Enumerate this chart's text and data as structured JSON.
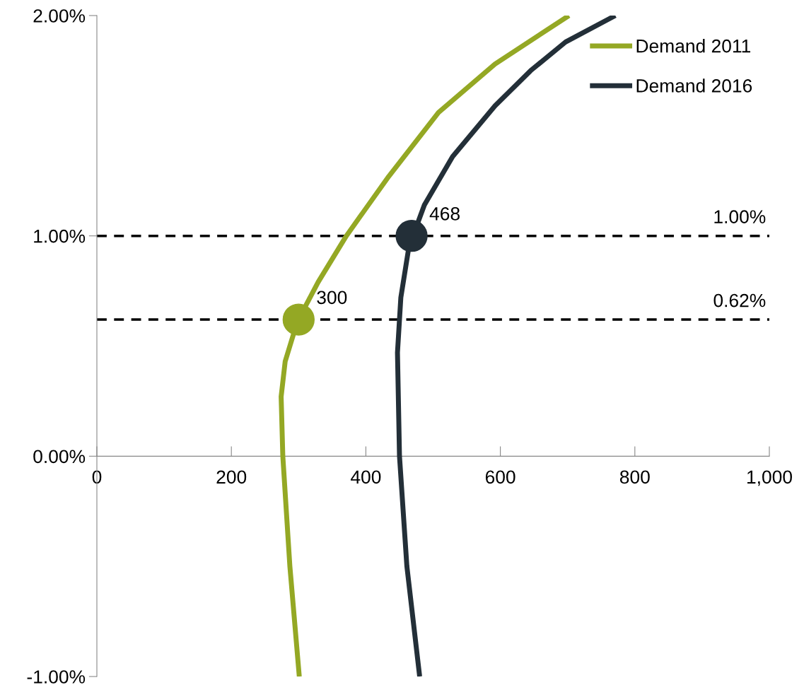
{
  "chart_data": {
    "type": "line",
    "xlim": [
      0,
      1000
    ],
    "ylim": [
      -1,
      2
    ],
    "xticks": [
      0,
      200,
      400,
      600,
      800,
      {
        "value": 1000,
        "label": "1,000"
      }
    ],
    "yticks": [
      {
        "value": -1,
        "label": "-1.00%"
      },
      {
        "value": 0,
        "label": "0.00%"
      },
      {
        "value": 1,
        "label": "1.00%"
      },
      {
        "value": 2,
        "label": "2.00%"
      }
    ],
    "series": [
      {
        "name": "Demand 2011",
        "color": "#94a824",
        "x": [
          301,
          287,
          276.5,
          274,
          280,
          298,
          329,
          371,
          434,
          508,
          592,
          702
        ],
        "values": [
          -1.0,
          -0.5,
          0.0,
          0.27,
          0.43,
          0.61,
          0.79,
          1.0,
          1.27,
          1.56,
          1.78,
          2.0
        ]
      },
      {
        "name": "Demand 2016",
        "color": "#232f38",
        "x": [
          480,
          461,
          450,
          447,
          452,
          464,
          487,
          529,
          592,
          645,
          697,
          771
        ],
        "values": [
          -1.0,
          -0.5,
          0.0,
          0.47,
          0.72,
          0.95,
          1.14,
          1.36,
          1.59,
          1.75,
          1.88,
          2.0
        ]
      },
      {
        "type": "scatter",
        "marker": "circle",
        "color": "#94a824",
        "x": [
          300
        ],
        "values": [
          0.62
        ]
      },
      {
        "type": "scatter",
        "marker": "circle",
        "color": "#232f38",
        "x": [
          468
        ],
        "values": [
          1.0
        ]
      }
    ],
    "ref_lines": [
      {
        "axis": "y",
        "value": 1.0,
        "label": "1.00%",
        "color": "#000000",
        "line_style": "dashed"
      },
      {
        "axis": "y",
        "value": 0.62,
        "label": "0.62%",
        "color": "#000000",
        "line_style": "dashed"
      }
    ],
    "annotations": [
      {
        "text": "300",
        "x": 300,
        "y": 0.62
      },
      {
        "text": "468",
        "x": 468,
        "y": 1.0
      }
    ],
    "legend": "top right",
    "grid": false,
    "line_style": "solid"
  }
}
